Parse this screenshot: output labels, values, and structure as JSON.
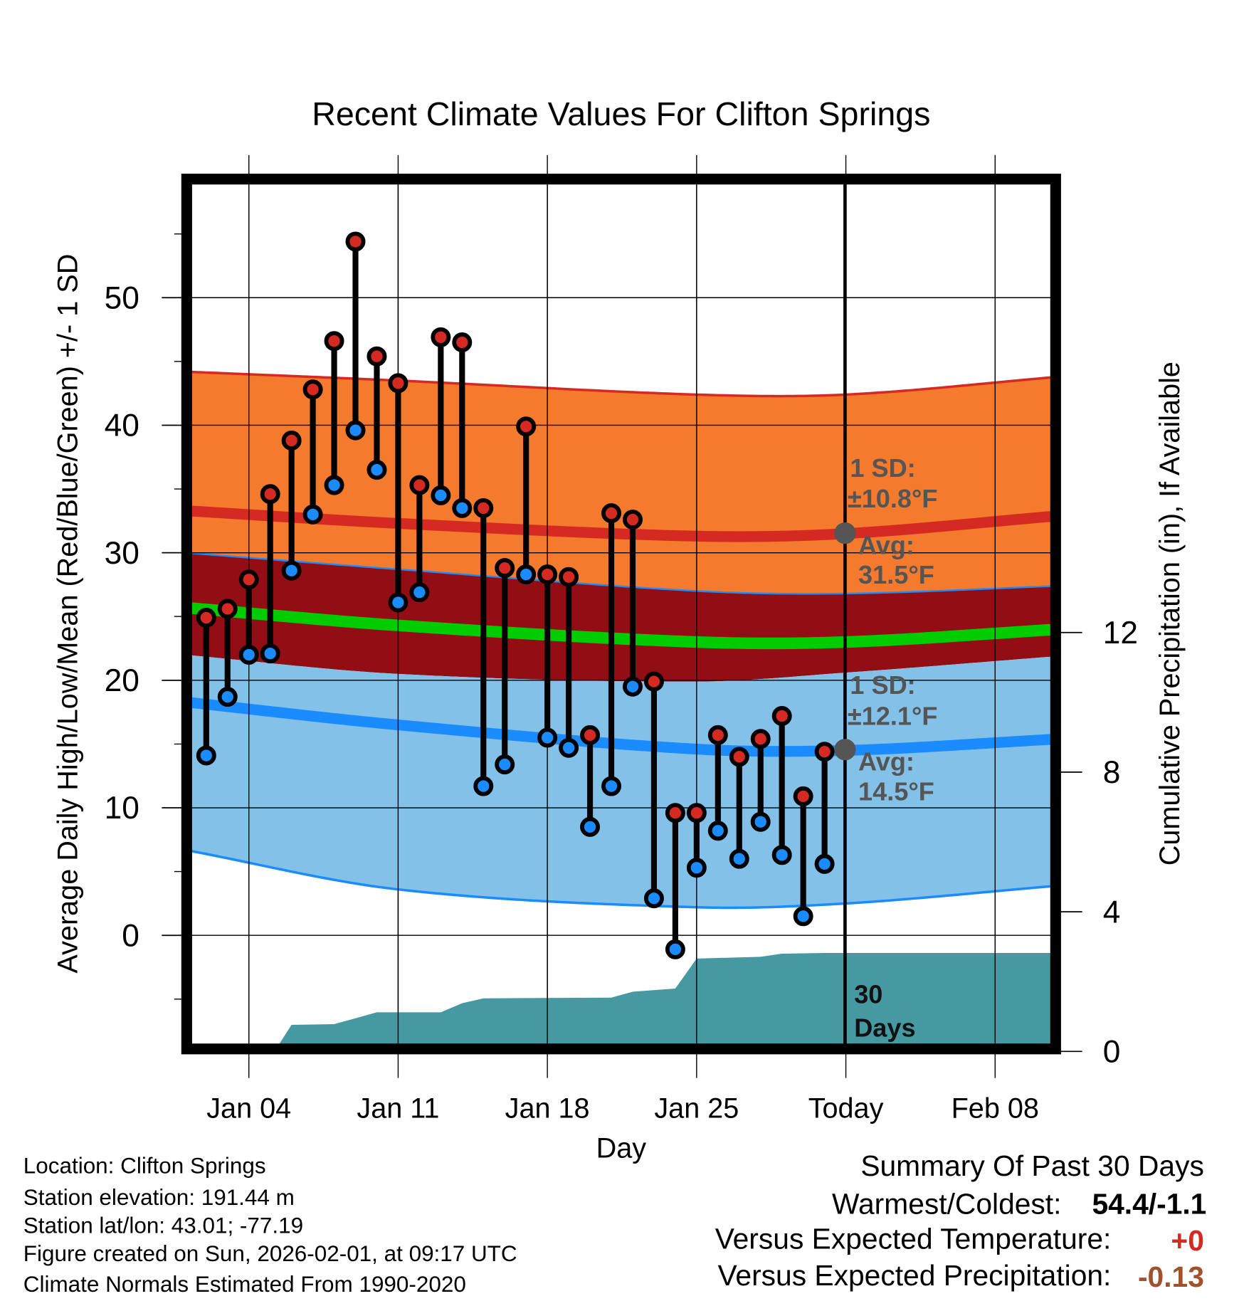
{
  "chart_data": {
    "type": "line",
    "title": "Recent Climate Values For Clifton Springs",
    "xlabel": "Day",
    "ylabel": "Average Daily High/Low/Mean (Red/Blue/Green) +/- 1 SD",
    "y2label": "Cumulative Precipitation (in), If Available",
    "ylim": [
      -9,
      60
    ],
    "y2lim": [
      0,
      28
    ],
    "y_ticks": [
      "0",
      "10",
      "20",
      "30",
      "40",
      "50"
    ],
    "y2_ticks": [
      "0",
      "4",
      "8",
      "12"
    ],
    "x_ticks": [
      {
        "label": "Jan 04",
        "day": 4
      },
      {
        "label": "Jan 11",
        "day": 11
      },
      {
        "label": "Jan 18",
        "day": 18
      },
      {
        "label": "Jan 25",
        "day": 25
      },
      {
        "label": "Today",
        "day": 32
      },
      {
        "label": "Feb 08",
        "day": 39
      }
    ],
    "x_range_days": [
      1.35,
      41.6
    ],
    "grid": true,
    "today_day": 32,
    "daily": {
      "days": [
        2,
        3,
        4,
        5,
        6,
        7,
        8,
        9,
        10,
        11,
        12,
        13,
        14,
        15,
        16,
        17,
        18,
        19,
        20,
        21,
        22,
        23,
        24,
        25,
        26,
        27,
        28,
        29,
        30,
        31
      ],
      "high": [
        24.9,
        25.6,
        27.9,
        34.6,
        38.8,
        42.8,
        46.6,
        54.4,
        45.4,
        43.3,
        35.3,
        46.9,
        46.5,
        33.5,
        28.8,
        39.9,
        28.3,
        28.1,
        15.7,
        33.1,
        32.6,
        19.9,
        9.6,
        9.6,
        15.7,
        14.0,
        15.4,
        17.2,
        10.9,
        14.4
      ],
      "low": [
        14.1,
        18.7,
        22.0,
        22.1,
        28.6,
        33.0,
        35.3,
        39.6,
        36.5,
        26.1,
        26.9,
        34.5,
        33.5,
        11.7,
        13.4,
        28.3,
        15.5,
        14.7,
        8.5,
        11.7,
        19.5,
        2.9,
        -1.1,
        5.3,
        8.2,
        6.0,
        8.9,
        6.3,
        1.5,
        5.6
      ]
    },
    "normals": {
      "days": [
        1,
        11,
        25,
        32,
        42
      ],
      "high_plus_sd": [
        44.2,
        43.5,
        42.4,
        42.4,
        43.8
      ],
      "high_avg": [
        33.3,
        32.3,
        31.3,
        31.5,
        32.9
      ],
      "high_minus_sd": [
        30.0,
        28.7,
        27.0,
        26.8,
        27.4
      ],
      "mean": [
        25.7,
        24.3,
        23.0,
        23.0,
        24.0
      ],
      "low_plus_sd": [
        22.0,
        20.5,
        19.9,
        20.6,
        21.9
      ],
      "low_avg": [
        18.3,
        16.5,
        14.6,
        14.5,
        15.4
      ],
      "low_minus_sd": [
        6.7,
        3.6,
        2.2,
        2.5,
        3.9
      ]
    },
    "precip_cumulative": {
      "days": [
        5.2,
        6,
        8,
        10,
        13,
        14,
        15,
        21,
        22,
        24,
        25,
        28,
        29,
        31,
        41.6
      ],
      "values": [
        0,
        0.76,
        0.78,
        1.12,
        1.12,
        1.38,
        1.52,
        1.54,
        1.71,
        1.8,
        2.66,
        2.71,
        2.8,
        2.82,
        2.82
      ]
    },
    "annotations": {
      "high_sd_label": "1 SD:",
      "high_sd_value": "±10.8°F",
      "high_avg_label": "Avg:",
      "high_avg_value": "31.5°F",
      "low_sd_label": "1 SD:",
      "low_sd_value": "±12.1°F",
      "low_avg_label": "Avg:",
      "low_avg_value": "14.5°F",
      "days_number": "30",
      "days_word": "Days",
      "high_avg_marker": 31.5,
      "low_avg_marker": 14.5
    },
    "colors": {
      "high_band": "#f47a2e",
      "high_line": "#d42a22",
      "mid_band": "#930e14",
      "mean_line": "#00cc00",
      "low_band": "#83c1e8",
      "low_line": "#1a8cff",
      "precip": "#4799a1",
      "high_dot": "#d42a22",
      "low_dot": "#1a8cff",
      "annotation": "#555555"
    }
  },
  "footer_left": [
    "Location: Clifton Springs",
    "Station elevation: 191.44 m",
    "Station lat/lon: 43.01; -77.19",
    "Figure created on Sun, 2026-02-01, at 09:17 UTC",
    "Climate Normals Estimated From 1990-2020"
  ],
  "summary": {
    "title": "Summary Of Past 30 Days",
    "warmest_coldest_label": "Warmest/Coldest:",
    "warmest_coldest_value": "54.4/-1.1",
    "temp_label": "Versus Expected Temperature:",
    "temp_value": "+0",
    "temp_color": "#d42a22",
    "precip_label": "Versus Expected Precipitation:",
    "precip_value": "-0.13",
    "precip_color": "#a0522d"
  }
}
